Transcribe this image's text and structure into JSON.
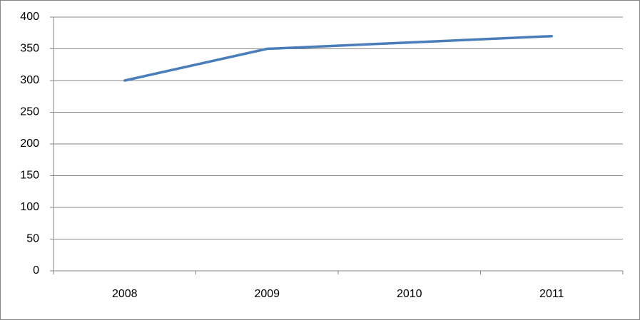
{
  "chart_data": {
    "type": "line",
    "categories": [
      "2008",
      "2009",
      "2010",
      "2011"
    ],
    "series": [
      {
        "values": [
          300,
          350,
          360,
          370
        ],
        "color": "#4a7ebb"
      }
    ],
    "ylim": [
      0,
      400
    ],
    "yticks": [
      0,
      50,
      100,
      150,
      200,
      250,
      300,
      350,
      400
    ],
    "grid": true
  }
}
